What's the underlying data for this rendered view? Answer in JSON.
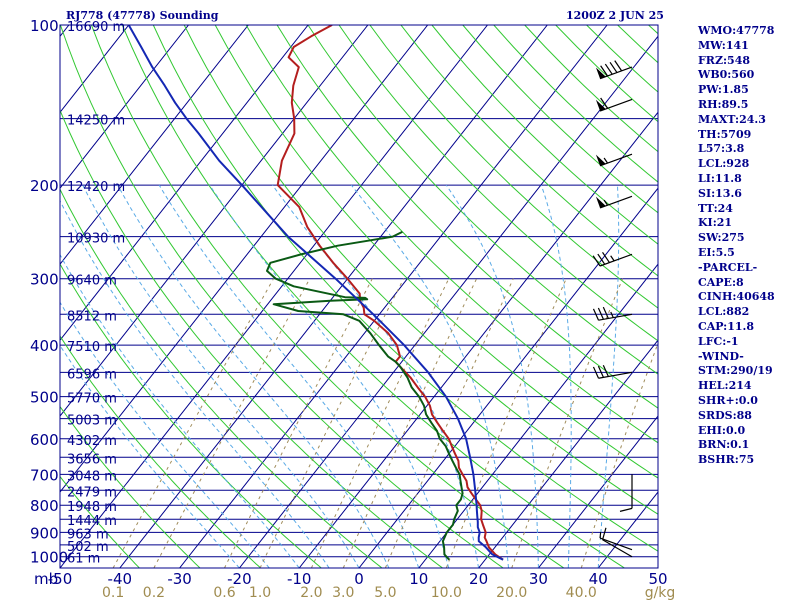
{
  "header": {
    "left": "RJ778 (47778) Sounding",
    "right": "1200Z  2 JUN 25"
  },
  "stats": [
    "WMO:47778",
    "MW:141",
    "FRZ:548",
    "WB0:560",
    "PW:1.85",
    "RH:89.5",
    "MAXT:24.3",
    "TH:5709",
    "L57:3.8",
    "LCL:928",
    "LI:11.8",
    "SI:13.6",
    "TT:24",
    "KI:21",
    "SW:275",
    "EI:5.5",
    "-PARCEL-",
    "CAPE:8",
    "CINH:40648",
    "LCL:882",
    "CAP:11.8",
    "LFC:-1",
    "-WIND-",
    "STM:290/19",
    "HEL:214",
    "SHR+:0.0",
    "SRDS:88",
    "EHI:0.0",
    "BRN:0.1",
    "BSHR:75"
  ],
  "colors": {
    "isobar": "#00008b",
    "isotherm": "#00008b",
    "dry_adiabat": "#32c832",
    "moist_adiabat": "#5aaae6",
    "mixing_ratio": "#a08c5a",
    "temperature": "#b41e1e",
    "dewpoint": "#0a5a14",
    "parcel": "#1428b4",
    "labels": "#00008b",
    "mixing_labels": "#a08c50",
    "wind": "#000000"
  },
  "chart_data": {
    "type": "line",
    "title": "RJ778 (47778) Sounding",
    "pressure_levels_hPa": [
      100,
      200,
      300,
      400,
      500,
      600,
      700,
      800,
      900,
      1000
    ],
    "pressure_tick_labels": [
      "100",
      "200",
      "300",
      "400",
      "500",
      "600",
      "700",
      "800",
      "900",
      "1000"
    ],
    "ylim_hPa": [
      1050,
      100
    ],
    "y_scale": "log",
    "height_labels": [
      {
        "p": 100,
        "label": "16690 m"
      },
      {
        "p": 150,
        "label": "14250 m"
      },
      {
        "p": 200,
        "label": "12420 m"
      },
      {
        "p": 250,
        "label": "10930 m"
      },
      {
        "p": 300,
        "label": "9640 m"
      },
      {
        "p": 350,
        "label": "8512 m"
      },
      {
        "p": 400,
        "label": "7510 m"
      },
      {
        "p": 450,
        "label": "6596 m"
      },
      {
        "p": 500,
        "label": "5770 m"
      },
      {
        "p": 550,
        "label": "5003 m"
      },
      {
        "p": 600,
        "label": "4302 m"
      },
      {
        "p": 650,
        "label": "3656 m"
      },
      {
        "p": 700,
        "label": "3048 m"
      },
      {
        "p": 750,
        "label": "2479 m"
      },
      {
        "p": 800,
        "label": "1948 m"
      },
      {
        "p": 850,
        "label": "1444 m"
      },
      {
        "p": 900,
        "label": "963 m"
      },
      {
        "p": 950,
        "label": "502 m"
      },
      {
        "p": 1000,
        "label": "61 m"
      }
    ],
    "temperature_tick_labels": [
      "-50",
      "-40",
      "-30",
      "-20",
      "-10",
      "0",
      "10",
      "20",
      "30",
      "40",
      "50"
    ],
    "temperature_ticks_C": [
      -50,
      -40,
      -30,
      -20,
      -10,
      0,
      10,
      20,
      30,
      40,
      50
    ],
    "x_axis_prefix": "mb",
    "mixing_ratio_labels": [
      "0.1",
      "0.2",
      "0.6",
      "1.0",
      "2.0",
      "3.0",
      "5.0",
      "10.0",
      "20.0",
      "40.0"
    ],
    "mixing_ratio_values": [
      0.1,
      0.2,
      0.6,
      1.0,
      2.0,
      3.0,
      5.0,
      10.0,
      20.0,
      40.0
    ],
    "mixing_ratio_unit": "g/kg",
    "skew_C_per_decade": 70,
    "xlim_at_1050_C": [
      -50,
      50
    ],
    "series": [
      {
        "key": "temperature",
        "p": [
          1013,
          990,
          960,
          935,
          920,
          900,
          870,
          850,
          820,
          800,
          780,
          760,
          740,
          720,
          700,
          680,
          660,
          640,
          620,
          600,
          580,
          560,
          540,
          520,
          500,
          480,
          460,
          440,
          430,
          420,
          400,
          380,
          360,
          350,
          340,
          330,
          320,
          300,
          280,
          260,
          240,
          220,
          200,
          180,
          160,
          150,
          140,
          130,
          120,
          115,
          110,
          105,
          100
        ],
        "t": [
          23.0,
          21.0,
          19.0,
          17.8,
          17.0,
          16.5,
          15.0,
          14.0,
          13.0,
          12.0,
          10.5,
          9.0,
          7.5,
          6.5,
          5.0,
          3.5,
          2.5,
          1.0,
          -0.5,
          -2.0,
          -4.0,
          -6.0,
          -8.0,
          -9.5,
          -11.5,
          -14.0,
          -16.5,
          -19.5,
          -21.0,
          -21.0,
          -23.0,
          -26.0,
          -30.0,
          -32.5,
          -33.5,
          -35.0,
          -36.0,
          -40.0,
          -44.5,
          -49.0,
          -53.5,
          -57.5,
          -64.0,
          -66.5,
          -68.0,
          -70.0,
          -72.5,
          -74.5,
          -76.0,
          -79.0,
          -79.5,
          -78.0,
          -76.0
        ]
      },
      {
        "key": "dewpoint",
        "p": [
          1013,
          990,
          960,
          935,
          900,
          870,
          850,
          820,
          800,
          780,
          760,
          740,
          720,
          700,
          680,
          660,
          640,
          620,
          600,
          580,
          560,
          540,
          520,
          500,
          480,
          460,
          440,
          430,
          420,
          400,
          380,
          360,
          350,
          345,
          335,
          330,
          328,
          326,
          325,
          310,
          300,
          290,
          280,
          270,
          260,
          255,
          250,
          245
        ],
        "t": [
          14.0,
          12.5,
          11.5,
          10.5,
          10.0,
          10.0,
          9.5,
          9.0,
          8.0,
          8.0,
          7.5,
          6.5,
          5.5,
          4.5,
          3.0,
          1.5,
          0.0,
          -1.5,
          -3.5,
          -5.0,
          -7.0,
          -9.0,
          -10.5,
          -12.5,
          -15.0,
          -17.0,
          -19.5,
          -21.0,
          -23.0,
          -26.0,
          -29.0,
          -32.5,
          -36.0,
          -44.0,
          -49.0,
          -40.0,
          -34.0,
          -34.5,
          -38.0,
          -48.0,
          -52.0,
          -54.5,
          -55.0,
          -51.0,
          -46.0,
          -42.0,
          -38.0,
          -37.0
        ]
      },
      {
        "key": "parcel",
        "p": [
          1013,
          990,
          960,
          935,
          920,
          900,
          880,
          860,
          840,
          820,
          800,
          750,
          700,
          650,
          600,
          550,
          500,
          450,
          400,
          350,
          300,
          250,
          200,
          180,
          160,
          150,
          140,
          130,
          120,
          110,
          100
        ],
        "t": [
          23.0,
          20.5,
          18.5,
          16.5,
          16.0,
          15.5,
          14.5,
          13.8,
          13.0,
          12.2,
          11.4,
          9.2,
          6.8,
          4.0,
          0.9,
          -3.1,
          -8.0,
          -14.2,
          -21.8,
          -31.0,
          -42.0,
          -55.5,
          -70.0,
          -77.0,
          -84.0,
          -88.0,
          -92.0,
          -96.0,
          -100.5,
          -105.0,
          -110.0
        ]
      }
    ],
    "wind_barbs": [
      {
        "p": 1000,
        "dir": 300,
        "spd": 10
      },
      {
        "p": 970,
        "dir": 290,
        "spd": 5
      },
      {
        "p": 700,
        "dir": 180,
        "spd": 10
      },
      {
        "p": 450,
        "dir": 260,
        "spd": 30
      },
      {
        "p": 350,
        "dir": 260,
        "spd": 35
      },
      {
        "p": 270,
        "dir": 250,
        "spd": 35
      },
      {
        "p": 210,
        "dir": 250,
        "spd": 55
      },
      {
        "p": 175,
        "dir": 250,
        "spd": 55
      },
      {
        "p": 138,
        "dir": 250,
        "spd": 60
      },
      {
        "p": 120,
        "dir": 250,
        "spd": 90
      }
    ]
  }
}
